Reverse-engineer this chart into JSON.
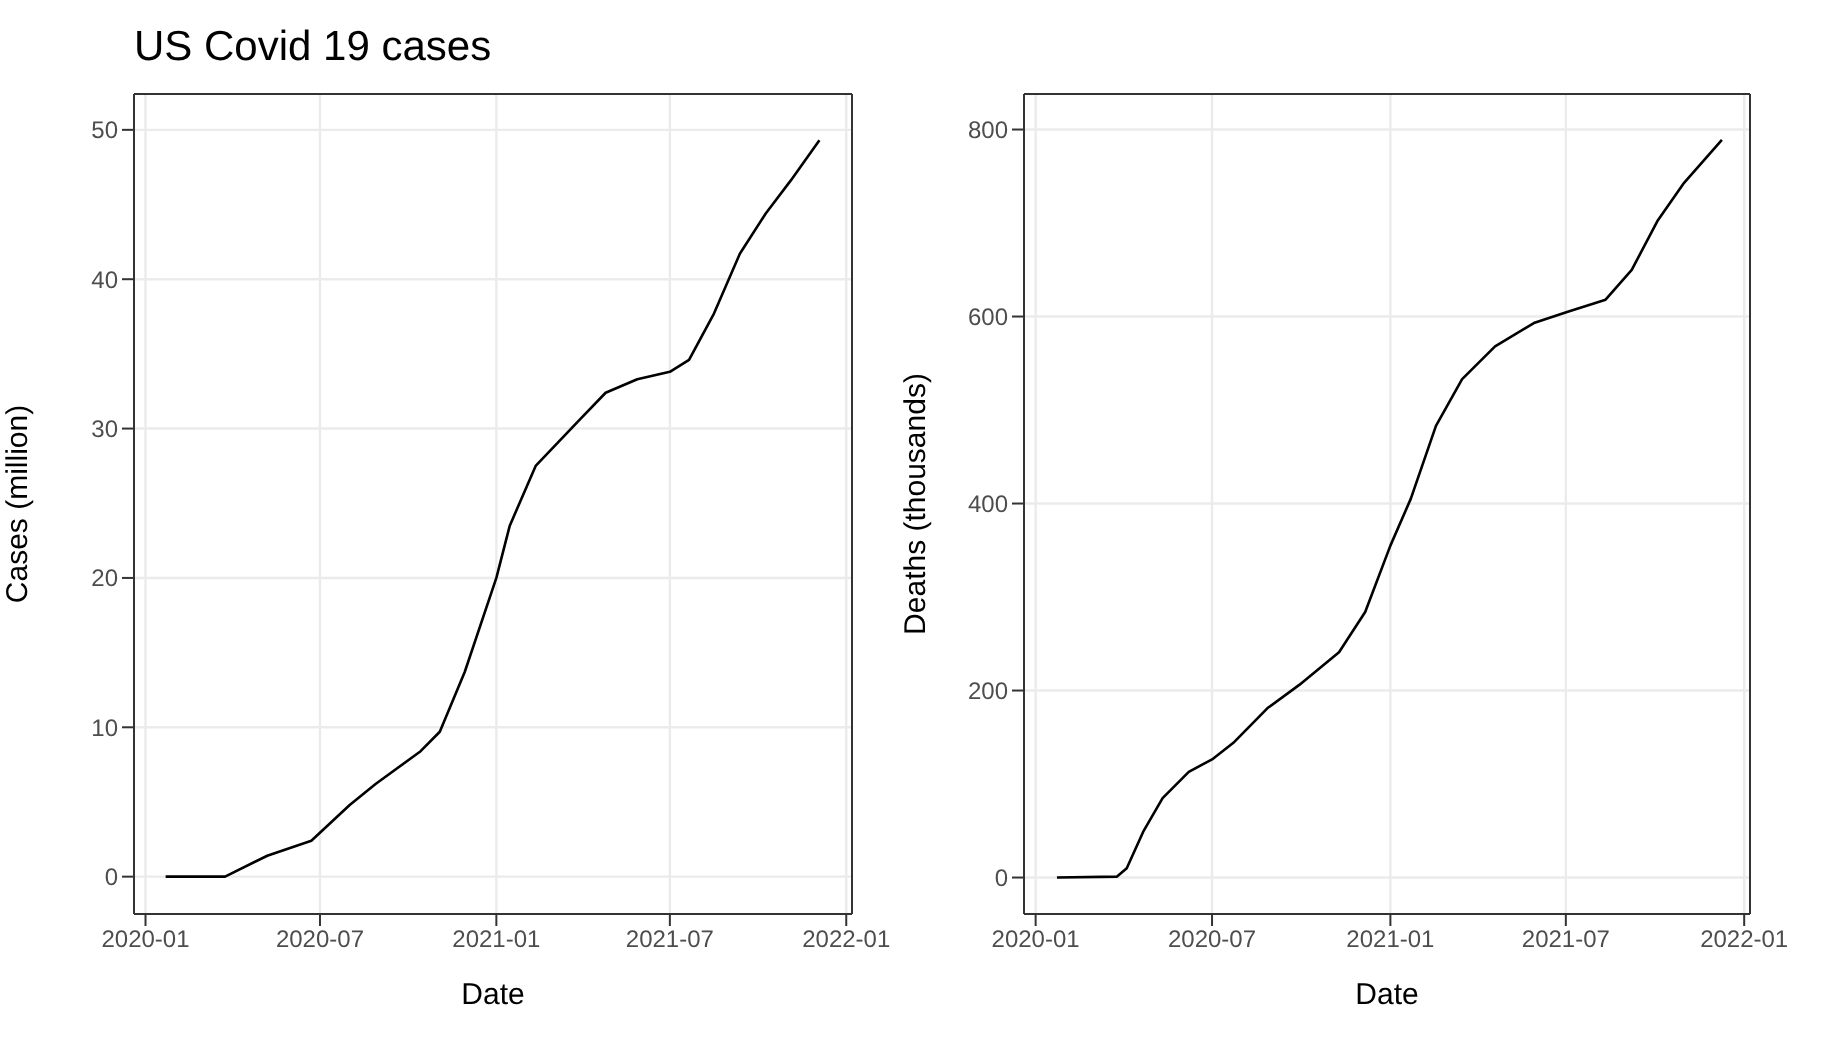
{
  "chart_data": [
    {
      "type": "line",
      "title": "US Covid 19 cases",
      "xlabel": "Date",
      "ylabel": "Cases (million)",
      "x": [
        "2020-01-22",
        "2020-03-24",
        "2020-05-07",
        "2020-06-22",
        "2020-08-01",
        "2020-08-28",
        "2020-10-14",
        "2020-11-03",
        "2020-11-29",
        "2021-01-01",
        "2021-01-15",
        "2021-02-11",
        "2021-03-29",
        "2021-04-25",
        "2021-05-28",
        "2021-07-01",
        "2021-07-21",
        "2021-08-16",
        "2021-09-12",
        "2021-10-09",
        "2021-11-04",
        "2021-12-04"
      ],
      "series": [
        {
          "color": "#000000",
          "values": [
            0,
            0,
            1.4,
            2.4,
            4.8,
            6.2,
            8.4,
            9.7,
            13.7,
            20.0,
            23.5,
            27.5,
            30.6,
            32.4,
            33.3,
            33.8,
            34.6,
            37.7,
            41.7,
            44.4,
            46.6,
            49.3
          ]
        }
      ],
      "xlim": [
        "2019-12-20",
        "2022-01-07"
      ],
      "xticks": [
        "2020-01",
        "2020-07",
        "2021-01",
        "2021-07",
        "2022-01"
      ],
      "ylim": [
        -2.5,
        52.4
      ],
      "yticks": [
        0,
        10,
        20,
        30,
        40,
        50
      ],
      "grid": true,
      "legend": false,
      "marker": "none",
      "line_style": "solid"
    },
    {
      "type": "line",
      "xlabel": "Date",
      "ylabel": "Deaths (thousands)",
      "x": [
        "2020-01-23",
        "2020-03-25",
        "2020-04-04",
        "2020-04-21",
        "2020-05-11",
        "2020-06-07",
        "2020-07-02",
        "2020-07-24",
        "2020-08-27",
        "2020-09-29",
        "2020-11-09",
        "2020-12-06",
        "2021-01-01",
        "2021-01-22",
        "2021-02-17",
        "2021-03-16",
        "2021-04-19",
        "2021-05-29",
        "2021-07-03",
        "2021-08-11",
        "2021-09-07",
        "2021-10-04",
        "2021-10-31",
        "2021-12-09"
      ],
      "series": [
        {
          "color": "#000000",
          "values": [
            0,
            1,
            10,
            49,
            85,
            113,
            127,
            145,
            181,
            206,
            241,
            284,
            355,
            405,
            483,
            533,
            568,
            593,
            605,
            618,
            650,
            703,
            743,
            789
          ]
        }
      ],
      "xlim": [
        "2019-12-20",
        "2022-01-07"
      ],
      "xticks": [
        "2020-01",
        "2020-07",
        "2021-01",
        "2021-07",
        "2022-01"
      ],
      "ylim": [
        -39,
        838
      ],
      "yticks": [
        0,
        200,
        400,
        600,
        800
      ],
      "grid": true,
      "legend": false,
      "marker": "none",
      "line_style": "solid"
    }
  ]
}
